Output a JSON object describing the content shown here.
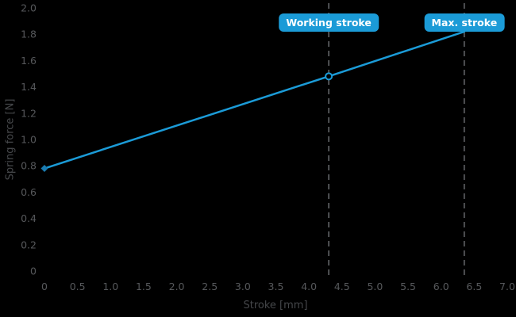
{
  "chart_data": {
    "type": "line",
    "title": "",
    "xlabel": "Stroke [mm]",
    "ylabel": "Spring force [N]",
    "xlim": [
      0,
      7
    ],
    "ylim": [
      0,
      2
    ],
    "grid": false,
    "legend": "none",
    "background_color": "#000000",
    "tick_label_color": "#56585b",
    "axis_title_color": "#45474a",
    "x_ticks": [
      0,
      0.5,
      1.0,
      1.5,
      2.0,
      2.5,
      3.0,
      3.5,
      4.0,
      4.5,
      5.0,
      5.5,
      6.0,
      6.5,
      7.0
    ],
    "x_tick_labels": [
      "0",
      "0.5",
      "1.0",
      "1.5",
      "2.0",
      "2.5",
      "3.0",
      "3.5",
      "4.0",
      "4.5",
      "5.0",
      "5.5",
      "6.0",
      "6.5",
      "7.0"
    ],
    "y_ticks": [
      0,
      0.2,
      0.4,
      0.6,
      0.8,
      1.0,
      1.2,
      1.4,
      1.6,
      1.8,
      2.0
    ],
    "y_tick_labels": [
      "0",
      "0.2",
      "0.4",
      "0.6",
      "0.8",
      "1.0",
      "1.2",
      "1.4",
      "1.6",
      "1.8",
      "2.0"
    ],
    "series": [
      {
        "name": "spring-characteristic-line",
        "color": "#1b9bd7",
        "width": 2.5,
        "points": [
          [
            0,
            0.78
          ],
          [
            4.3,
            1.48
          ],
          [
            6.35,
            1.82
          ]
        ]
      }
    ],
    "markers": [
      {
        "type": "diamond",
        "x": 0,
        "y": 0.78,
        "fill": "#1a7cb2"
      },
      {
        "type": "circle",
        "x": 4.3,
        "y": 1.48,
        "stroke": "#1b9bd7",
        "fill": "#000000",
        "r": 4
      }
    ],
    "annotations": [
      {
        "label": "Working stroke",
        "x": 4.3
      },
      {
        "label": "Max. stroke",
        "x": 6.35
      }
    ],
    "annotation_line_color": "#505254",
    "annotation_badge_color": "#1b9bd7",
    "annotation_text_color": "#ffffff"
  }
}
